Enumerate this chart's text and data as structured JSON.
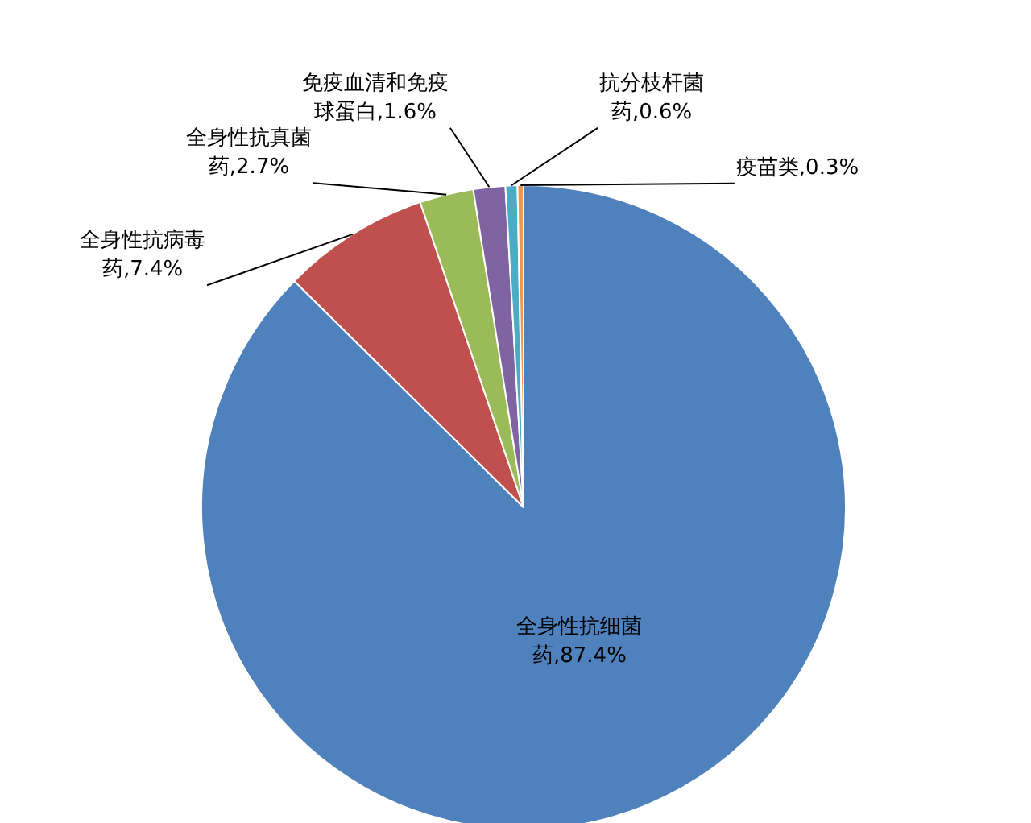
{
  "chart_data": {
    "type": "pie",
    "categories": [
      "全身性抗细菌药",
      "全身性抗病毒药",
      "全身性抗真菌药",
      "免疫血清和免疫球蛋白",
      "抗分枝杆菌药",
      "疫苗类"
    ],
    "values": [
      87.4,
      7.4,
      2.7,
      1.6,
      0.6,
      0.3
    ],
    "colors": [
      "#4f81bd",
      "#c0504d",
      "#9bbb59",
      "#8064a2",
      "#4bacc6",
      "#f79646"
    ],
    "value_labels": [
      ",87.4%",
      ",7.4%",
      ",2.7%",
      ",1.6%",
      ",0.6%",
      ",0.3%"
    ]
  }
}
